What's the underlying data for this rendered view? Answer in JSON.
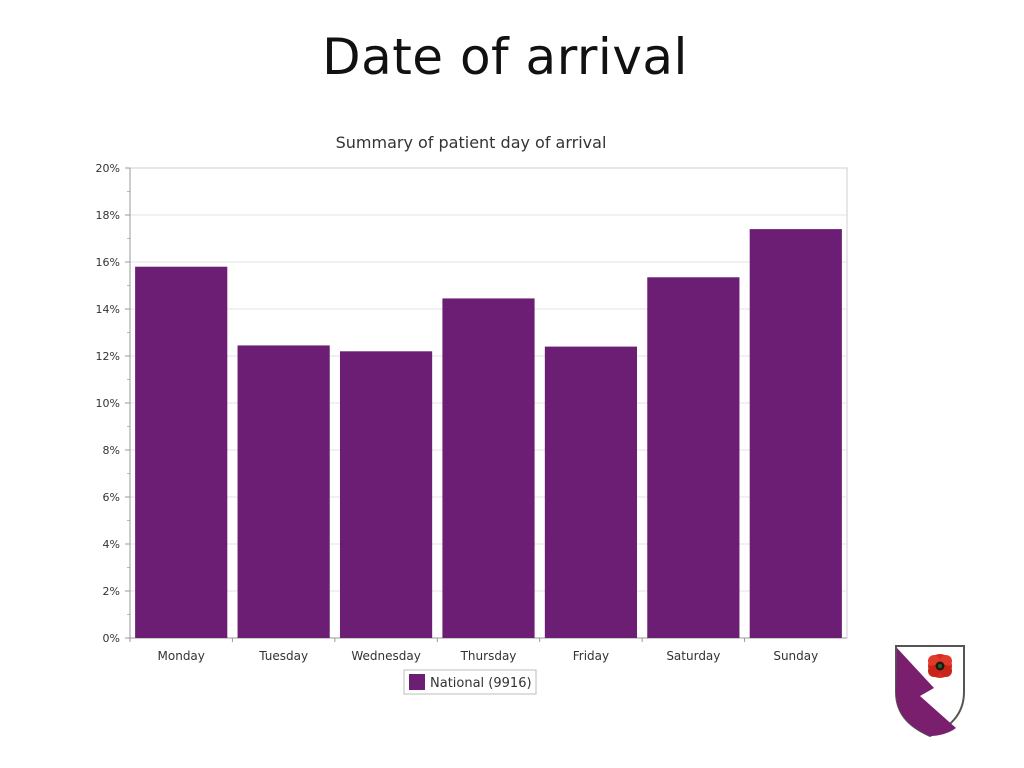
{
  "slide": {
    "title": "Date of arrival"
  },
  "chart_data": {
    "type": "bar",
    "title": "Summary of patient day of arrival",
    "categories": [
      "Monday",
      "Tuesday",
      "Wednesday",
      "Thursday",
      "Friday",
      "Saturday",
      "Sunday"
    ],
    "series": [
      {
        "name": "National (9916)",
        "color": "#6b1e74",
        "values": [
          15.8,
          12.45,
          12.2,
          14.45,
          12.4,
          15.35,
          17.4
        ]
      }
    ],
    "yticks": [
      "0%",
      "2%",
      "4%",
      "6%",
      "8%",
      "10%",
      "12%",
      "14%",
      "16%",
      "18%",
      "20%"
    ],
    "ylim": [
      0,
      20
    ],
    "ystep": 2,
    "grid": true,
    "legend_position": "bottom-center"
  },
  "crest": {
    "icon": "poppy-shield-icon",
    "colors": {
      "primary": "#7a1f6e",
      "poppy": "#d62a1e",
      "outline": "#555555"
    }
  }
}
